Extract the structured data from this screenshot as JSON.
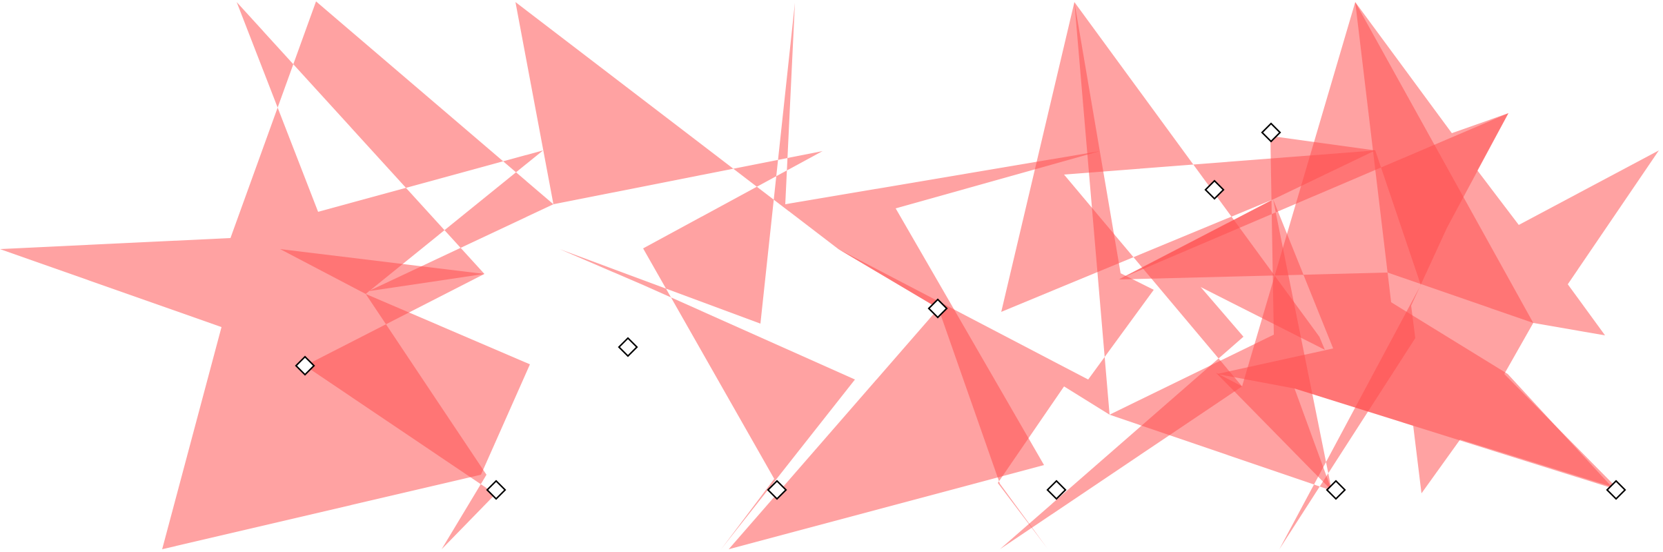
{
  "canvas": {
    "background": "#ffffff",
    "shape_fill_color": "#ff4d4d",
    "handle_fill_color": "#ffffff",
    "handle_stroke_color": "#000000",
    "handle_icon": "diamond-control-point-icon"
  },
  "shapes": [
    {
      "name": "star-1",
      "kind": "polygon",
      "points": 10,
      "fill_rule": "evenodd"
    },
    {
      "name": "star-2",
      "kind": "polygon",
      "points": 10,
      "fill_rule": "evenodd"
    },
    {
      "name": "star-3",
      "kind": "polygon",
      "points": 10,
      "fill_rule": "evenodd"
    },
    {
      "name": "star-4",
      "kind": "polygon",
      "points": 10,
      "fill_rule": "evenodd"
    },
    {
      "name": "star-5",
      "kind": "polygon",
      "points": 10,
      "fill_rule": "evenodd"
    }
  ],
  "handles_count": 10
}
